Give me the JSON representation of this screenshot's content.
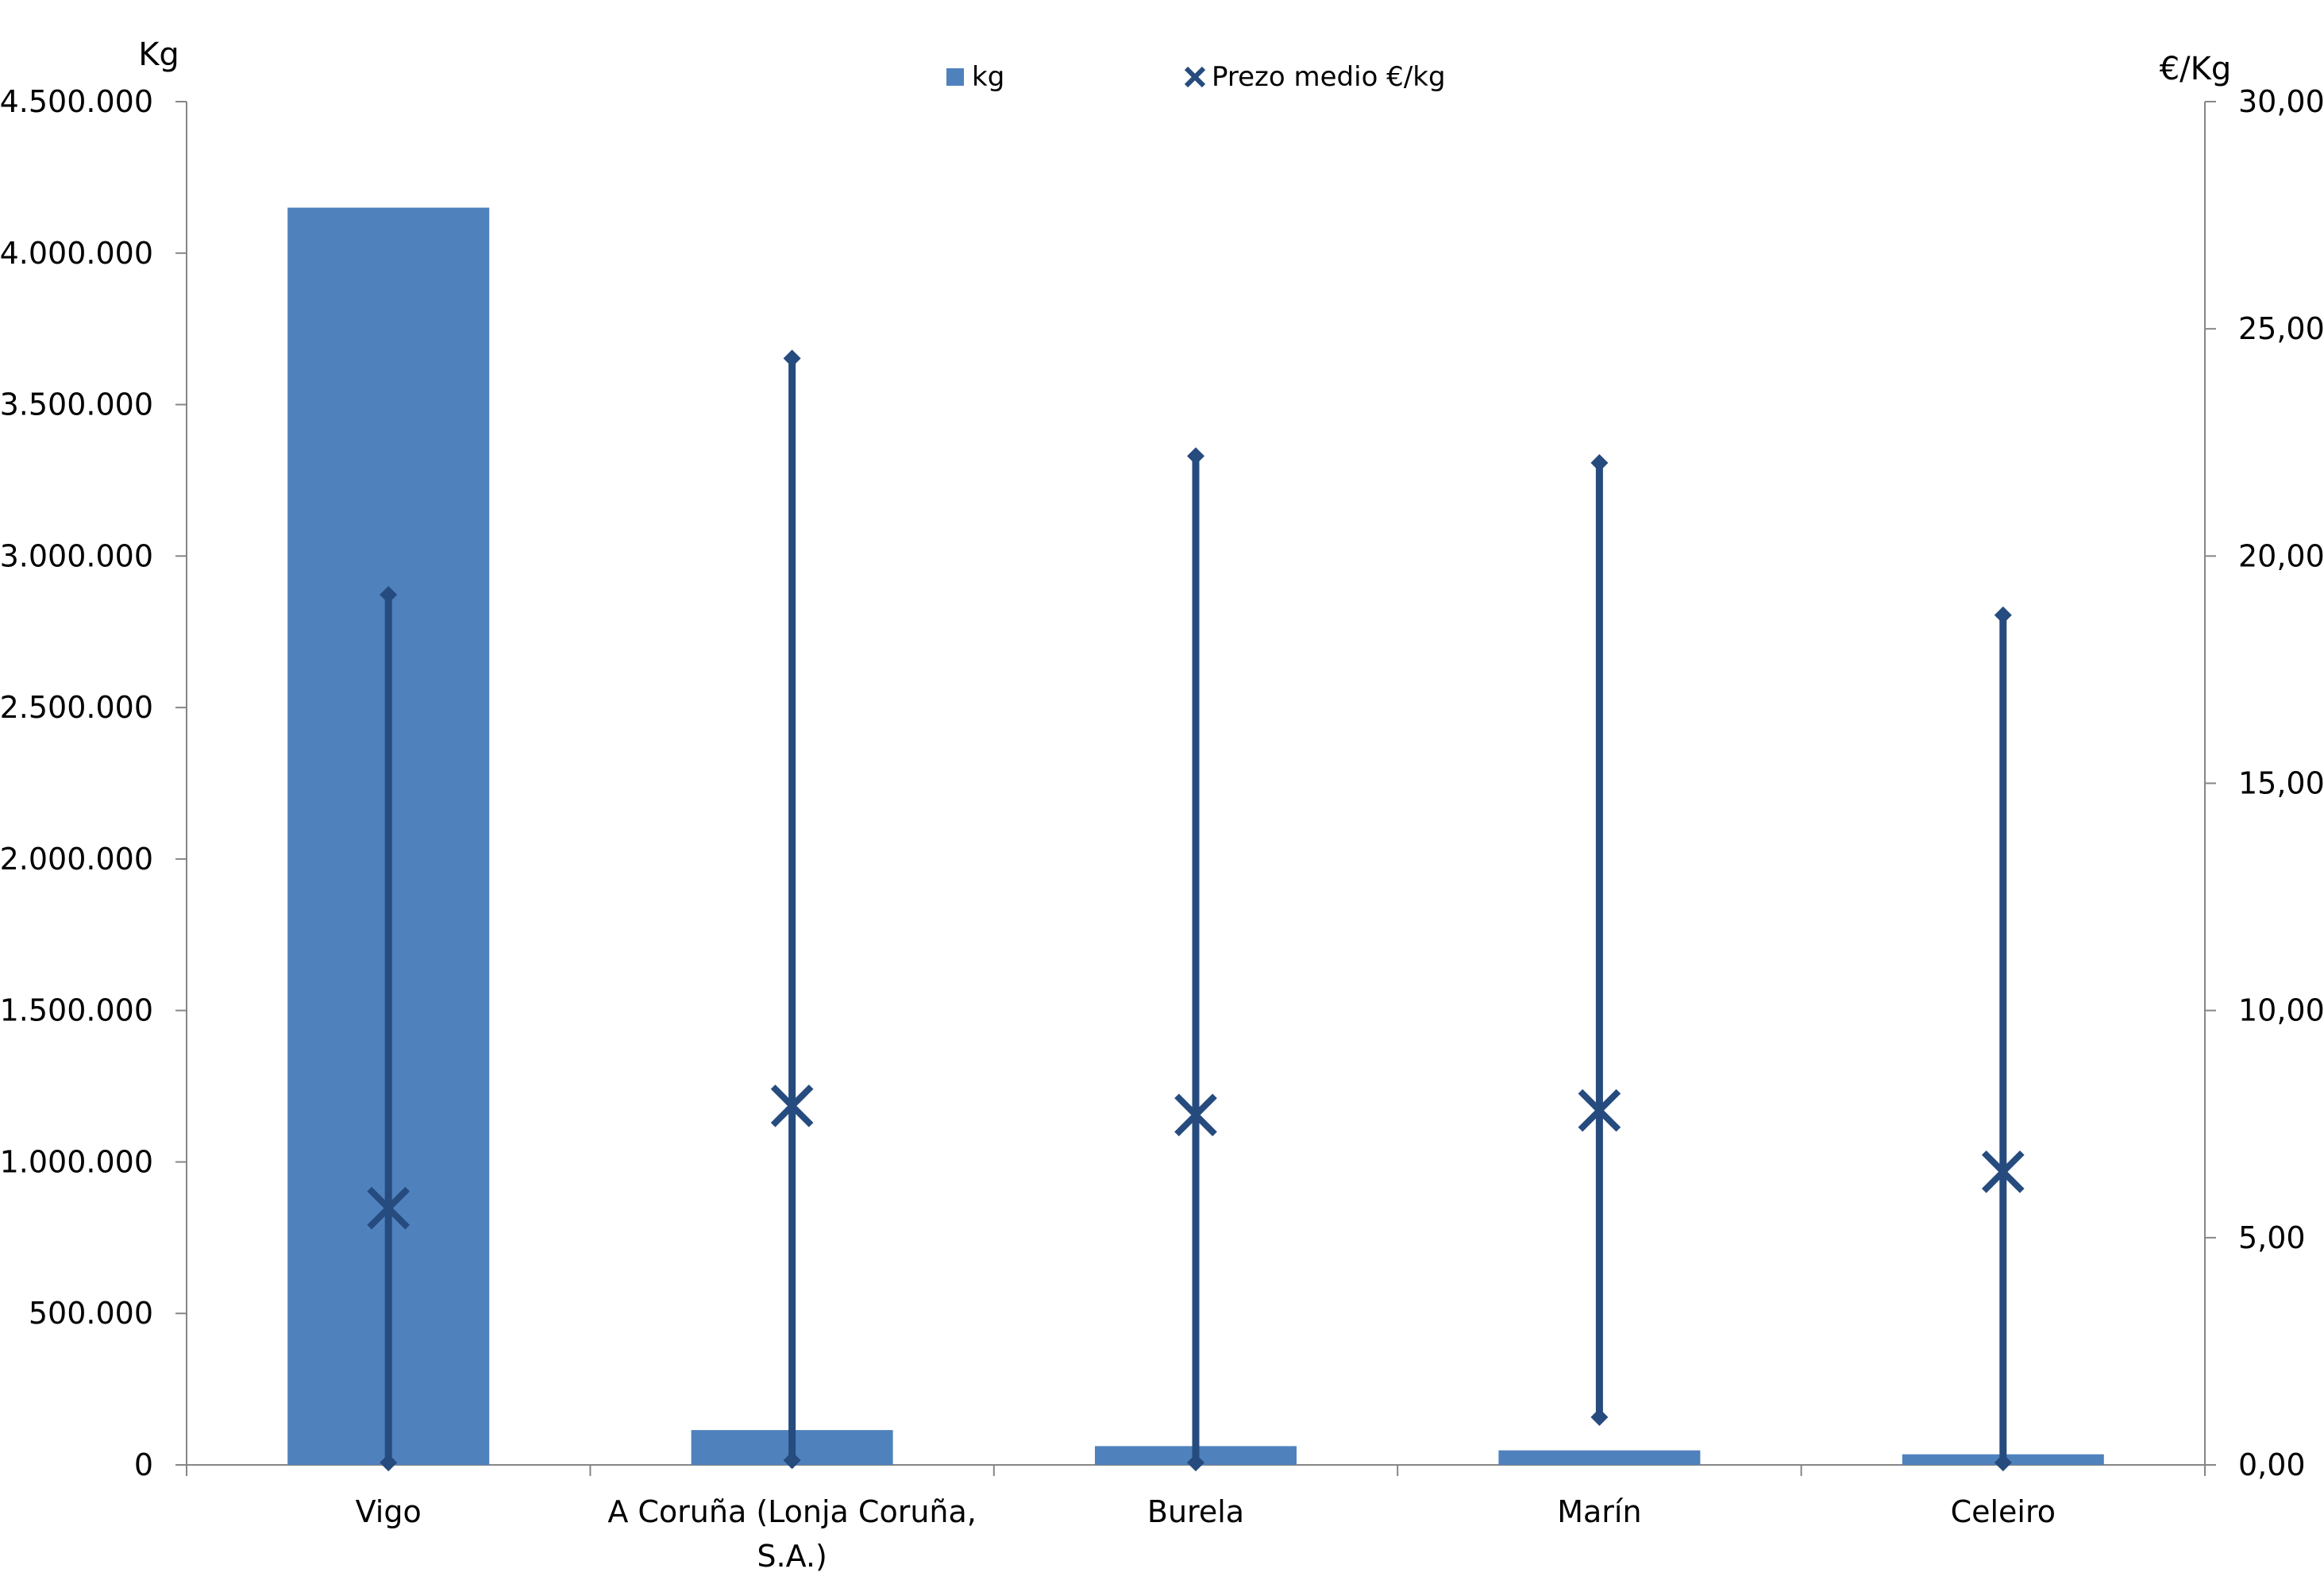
{
  "chart_data": {
    "type": "bar",
    "categories": [
      "Vigo",
      "A Coruña (Lonja Coruña, S.A.)",
      "Burela",
      "Marín",
      "Celeiro"
    ],
    "category_label_lines": [
      [
        "Vigo"
      ],
      [
        "A Coruña (Lonja Coruña,",
        "S.A.)"
      ],
      [
        "Burela"
      ],
      [
        "Marín"
      ],
      [
        "Celeiro"
      ]
    ],
    "y_left": {
      "label": "Kg",
      "ylim": [
        0,
        4500000
      ],
      "ticks": [
        0,
        500000,
        1000000,
        1500000,
        2000000,
        2500000,
        3000000,
        3500000,
        4000000,
        4500000
      ],
      "tick_labels": [
        "0",
        "500.000",
        "1.000.000",
        "1.500.000",
        "2.000.000",
        "2.500.000",
        "3.000.000",
        "3.500.000",
        "4.000.000",
        "4.500.000"
      ]
    },
    "y_right": {
      "label": "€/Kg",
      "ylim": [
        0,
        30
      ],
      "ticks": [
        0,
        5,
        10,
        15,
        20,
        25,
        30
      ],
      "tick_labels": [
        "0,00",
        "5,00",
        "10,00",
        "15,00",
        "20,00",
        "25,00",
        "30,00"
      ]
    },
    "series": [
      {
        "name": "kg",
        "type": "bar",
        "axis": "left",
        "color": "#4f81bd",
        "values": [
          4150000,
          115000,
          62000,
          48000,
          35000
        ]
      },
      {
        "name": "Prezo medio €/kg",
        "type": "range-marker",
        "axis": "right",
        "color": "#264b7e",
        "mean": [
          5.65,
          7.9,
          7.7,
          7.8,
          6.45
        ],
        "min": [
          0.05,
          0.1,
          0.05,
          1.05,
          0.05
        ],
        "max": [
          19.15,
          24.35,
          22.2,
          22.05,
          18.7
        ]
      }
    ],
    "legend": {
      "position": "top-center",
      "items": [
        {
          "label": "kg",
          "marker": "square"
        },
        {
          "label": "Prezo medio €/kg",
          "marker": "x"
        }
      ]
    },
    "grid": false
  }
}
